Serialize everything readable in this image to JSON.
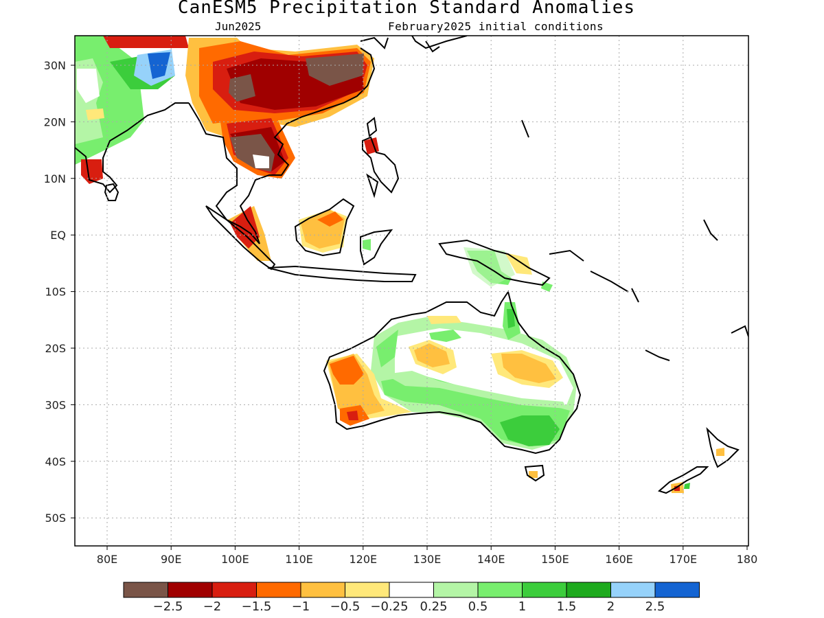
{
  "title": "CanESM5 Precipitation Standard Anomalies",
  "subtitle_left": "Jun2025",
  "subtitle_right": "February2025 initial conditions",
  "map": {
    "lon_ticks": [
      "80E",
      "90E",
      "100E",
      "110E",
      "120E",
      "130E",
      "140E",
      "150E",
      "160E",
      "170E",
      "180"
    ],
    "lat_ticks": [
      "30N",
      "20N",
      "10N",
      "EQ",
      "10S",
      "20S",
      "30S",
      "40S",
      "50S"
    ],
    "grid": true
  },
  "colorbar": {
    "colors": [
      "#7a5548",
      "#a00000",
      "#d81e10",
      "#ff6a00",
      "#ffc040",
      "#ffe87a",
      "#ffffff",
      "#b4f5a6",
      "#78ee6e",
      "#3ccd3c",
      "#1eaa1e",
      "#96d2fa",
      "#1464d2"
    ],
    "labels": [
      "−2.5",
      "−2",
      "−1.5",
      "−1",
      "−0.5",
      "−0.25",
      "0.25",
      "0.5",
      "1",
      "1.5",
      "2",
      "2.5"
    ]
  }
}
